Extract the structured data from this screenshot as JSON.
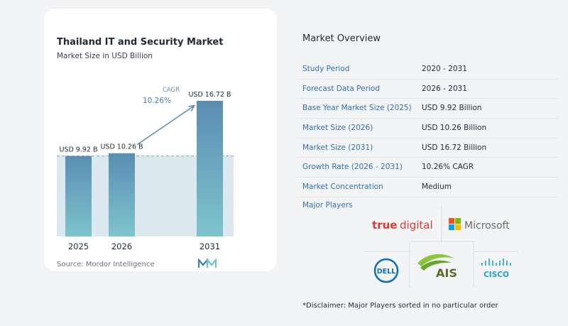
{
  "chart_data": {
    "type": "bar",
    "title": "Thailand IT and Security Market",
    "subtitle": "Market Size in USD Billion",
    "categories": [
      "2025",
      "2026",
      "2031"
    ],
    "values": [
      9.92,
      10.26,
      16.72
    ],
    "data_labels": [
      "USD 9.92 B",
      "USD 10.26 B",
      "USD 16.72 B"
    ],
    "ylim": [
      0,
      17.5
    ],
    "baseline_reference": 9.92,
    "cagr_label": "CAGR",
    "cagr_value": "10.26%",
    "bar_color_top": "#5b8db3",
    "bar_color_bottom": "#7ec4cc",
    "shade_color": "#dce8ef"
  },
  "source": "Source:  Mordor Intelligence",
  "overview": {
    "title": "Market Overview",
    "rows": [
      {
        "label": "Study Period",
        "value": "2020 - 2031"
      },
      {
        "label": "Forecast Data Period",
        "value": "2026 - 2031"
      },
      {
        "label": "Base Year Market Size (2025)",
        "value": "USD 9.92 Billion"
      },
      {
        "label": "Market Size (2026)",
        "value": "USD 10.26 Billion"
      },
      {
        "label": "Market Size (2031)",
        "value": "USD 16.72 Billion"
      },
      {
        "label": "Growth Rate (2026 - 2031)",
        "value": "10.26% CAGR"
      },
      {
        "label": "Market Concentration",
        "value": "Medium"
      }
    ]
  },
  "players": {
    "title": "Major Players",
    "truedigital_a": "true",
    "truedigital_b": "digital",
    "microsoft": "Microsoft",
    "dell": "DELL",
    "ais": "AIS",
    "cisco": "CISCO"
  },
  "disclaimer": "*Disclaimer: Major Players sorted in no particular order",
  "colors": {
    "accent": "#2f6fb5",
    "text": "#1f2a37"
  }
}
